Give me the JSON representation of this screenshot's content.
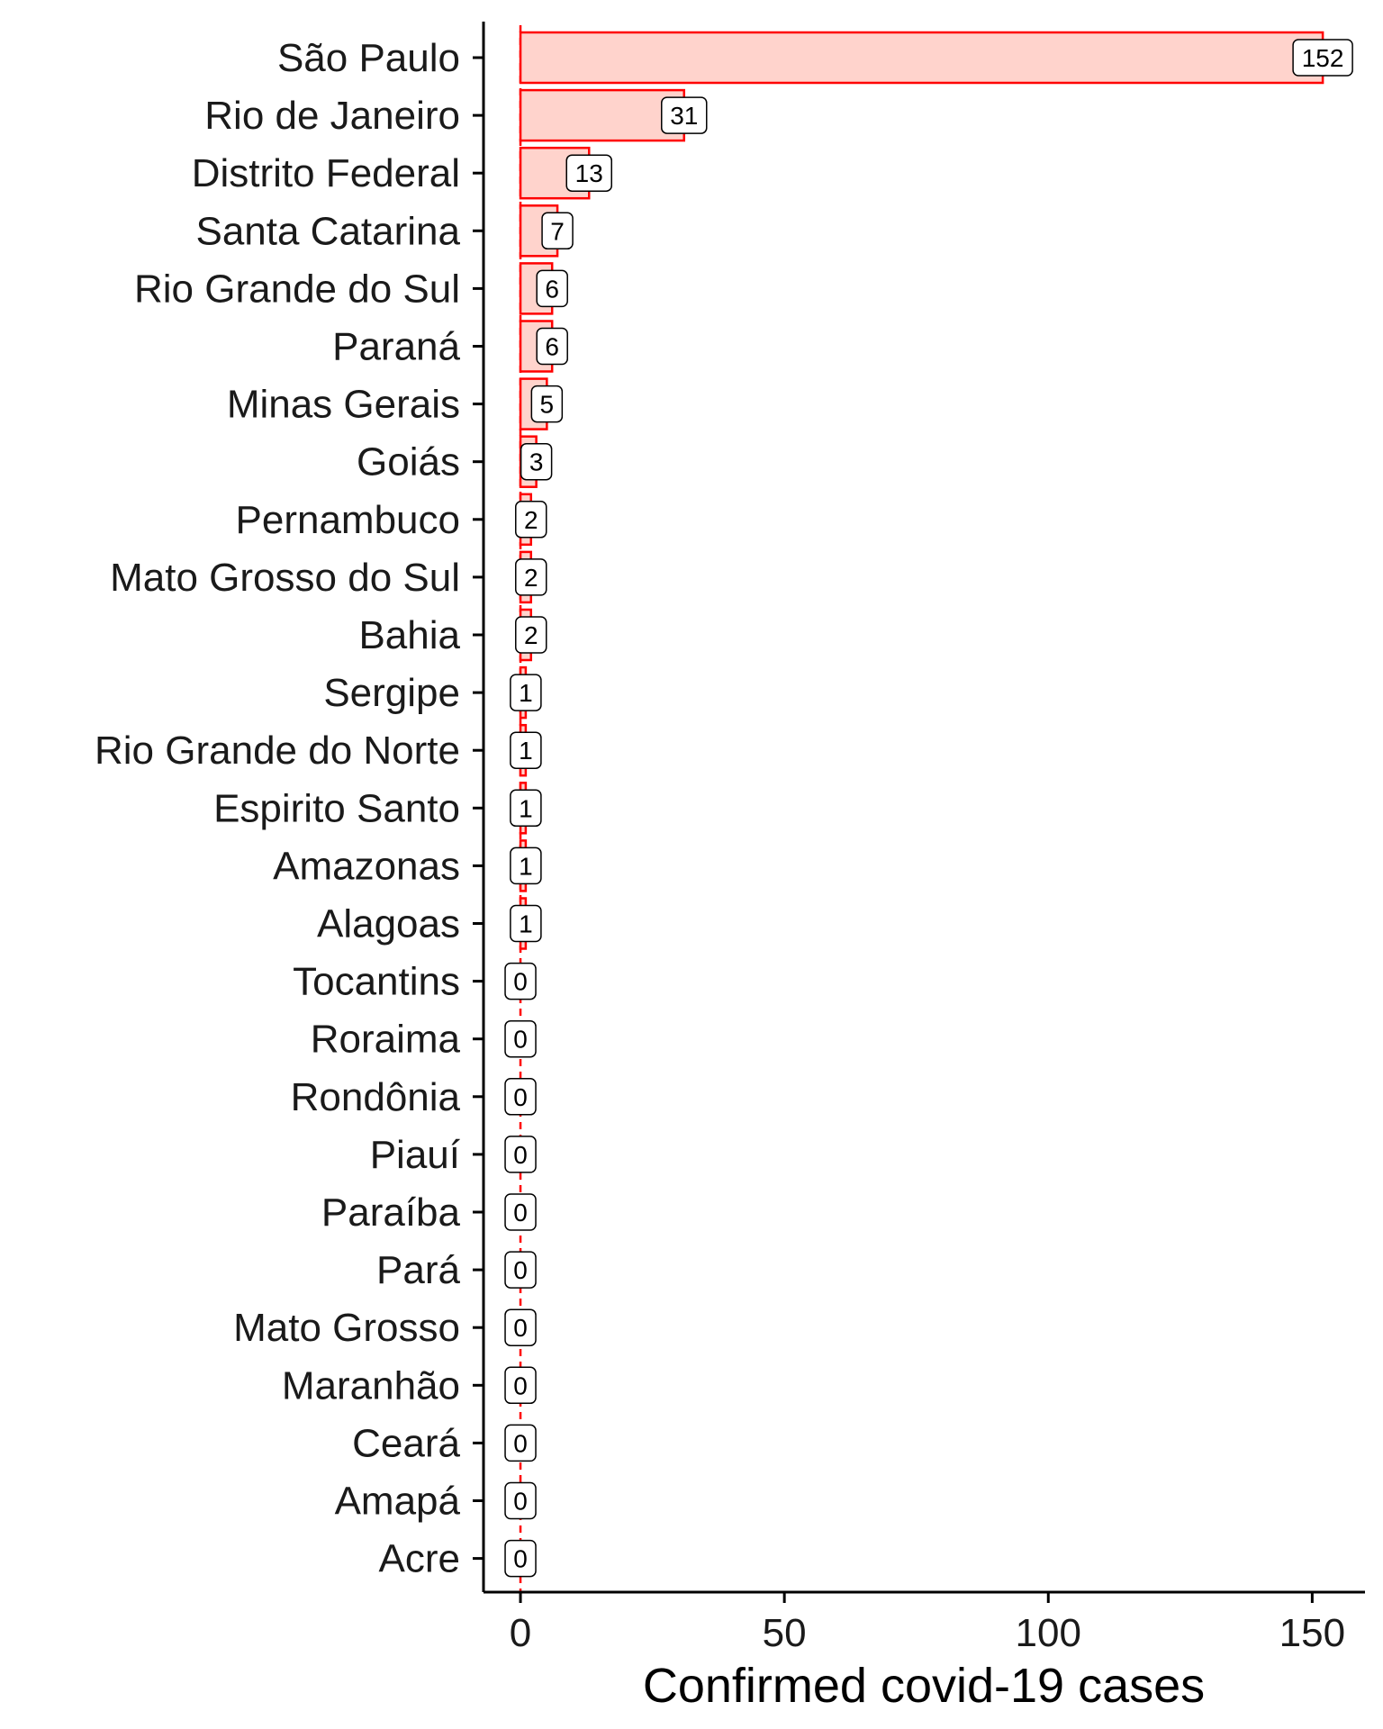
{
  "chart_data": {
    "type": "bar",
    "orientation": "horizontal",
    "categories": [
      "São Paulo",
      "Rio de Janeiro",
      "Distrito Federal",
      "Santa Catarina",
      "Rio Grande do Sul",
      "Paraná",
      "Minas Gerais",
      "Goiás",
      "Pernambuco",
      "Mato Grosso do Sul",
      "Bahia",
      "Sergipe",
      "Rio Grande do Norte",
      "Espirito Santo",
      "Amazonas",
      "Alagoas",
      "Tocantins",
      "Roraima",
      "Rondônia",
      "Piauí",
      "Paraíba",
      "Pará",
      "Mato Grosso",
      "Maranhão",
      "Ceará",
      "Amapá",
      "Acre"
    ],
    "values": [
      152,
      31,
      13,
      7,
      6,
      6,
      5,
      3,
      2,
      2,
      2,
      1,
      1,
      1,
      1,
      1,
      0,
      0,
      0,
      0,
      0,
      0,
      0,
      0,
      0,
      0,
      0
    ],
    "title": "",
    "xlabel": "Confirmed covid-19 cases",
    "ylabel": "",
    "xlim": [
      -7,
      160
    ],
    "xticks": [
      0,
      50,
      100,
      150
    ],
    "grid": false,
    "legend": "none",
    "bar_fill": "#FFD3CC",
    "bar_stroke": "#FF0000",
    "zero_line_color": "#FF0000",
    "zero_line_style": "dashed",
    "data_labels": true
  }
}
